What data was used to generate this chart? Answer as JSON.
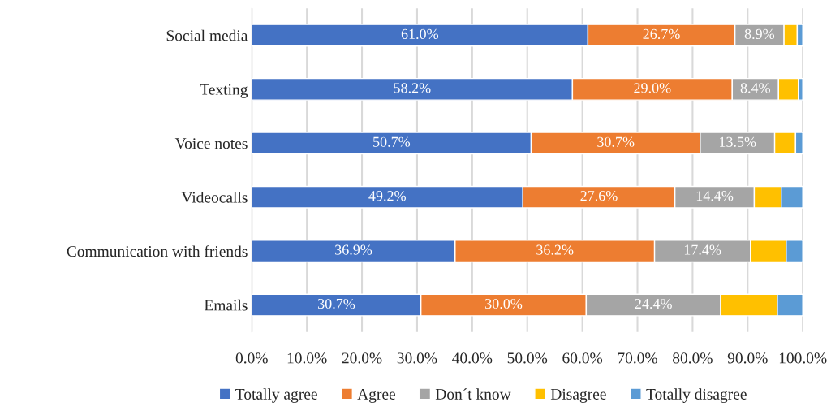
{
  "chart_data": {
    "type": "bar",
    "orientation": "horizontal",
    "stacked": true,
    "categories": [
      "Social media",
      "Texting",
      "Voice notes",
      "Videocalls",
      "Communication with friends",
      "Emails"
    ],
    "series": [
      {
        "name": "Totally agree",
        "color": "#4472c4",
        "values": [
          61.0,
          58.2,
          50.7,
          49.2,
          36.9,
          30.7
        ],
        "value_labels": [
          "61.0%",
          "58.2%",
          "50.7%",
          "49.2%",
          "36.9%",
          "30.7%"
        ]
      },
      {
        "name": "Agree",
        "color": "#ed7d31",
        "values": [
          26.7,
          29.0,
          30.7,
          27.6,
          36.2,
          30.0
        ],
        "value_labels": [
          "26.7%",
          "29.0%",
          "30.7%",
          "27.6%",
          "36.2%",
          "30.0%"
        ]
      },
      {
        "name": "Don´t know",
        "color": "#a5a5a5",
        "values": [
          8.9,
          8.4,
          13.5,
          14.4,
          17.4,
          24.4
        ],
        "value_labels": [
          "8.9%",
          "8.4%",
          "13.5%",
          "14.4%",
          "17.4%",
          "24.4%"
        ]
      },
      {
        "name": "Disagree",
        "color": "#ffc000",
        "values": [
          2.4,
          3.6,
          3.8,
          4.9,
          6.5,
          10.3
        ]
      },
      {
        "name": "Totally disagree",
        "color": "#5b9bd5",
        "values": [
          1.0,
          0.8,
          1.3,
          3.9,
          3.0,
          4.6
        ]
      }
    ],
    "xlim": [
      0,
      100
    ],
    "xticks": [
      {
        "value": 0,
        "label": "0.0%"
      },
      {
        "value": 10,
        "label": "10.0%"
      },
      {
        "value": 20,
        "label": "20.0%"
      },
      {
        "value": 30,
        "label": "30.0%"
      },
      {
        "value": 40,
        "label": "40.0%"
      },
      {
        "value": 50,
        "label": "50.0%"
      },
      {
        "value": 60,
        "label": "60.0%"
      },
      {
        "value": 70,
        "label": "70.0%"
      },
      {
        "value": 80,
        "label": "80.0%"
      },
      {
        "value": 90,
        "label": "90.0%"
      },
      {
        "value": 100,
        "label": "100.0%"
      }
    ],
    "grid": "x",
    "legend": "bottom"
  }
}
